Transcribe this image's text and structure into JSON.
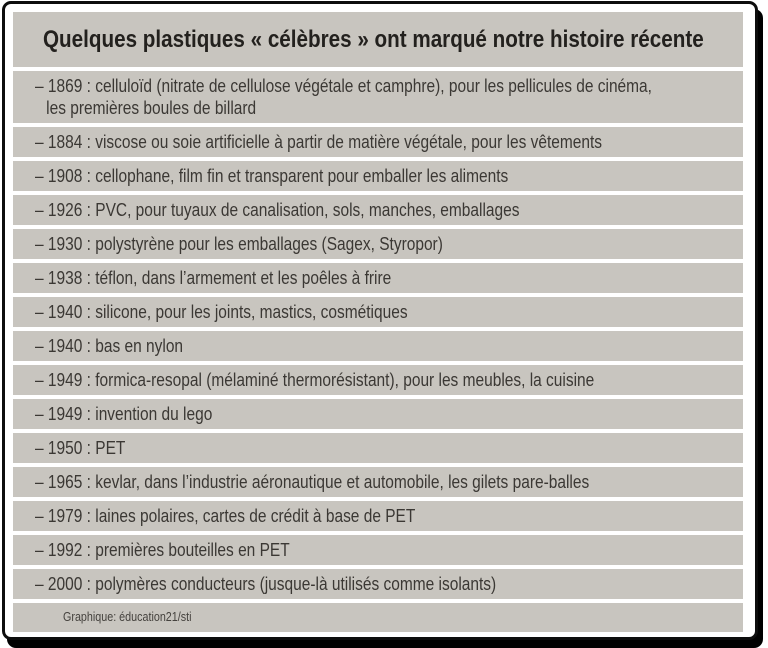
{
  "title": "Quelques plastiques « célèbres » ont marqué notre histoire récente",
  "rows": [
    "– 1869 : celluloïd (nitrate de cellulose végétale et camphre), pour les pellicules de cinéma,\nles premières boules de billard",
    "– 1884 : viscose ou soie artificielle à partir de matière végétale, pour les vêtements",
    "– 1908 : cellophane, film fin et transparent pour emballer les aliments",
    "– 1926 : PVC, pour tuyaux de canalisation, sols, manches, emballages",
    "– 1930 : polystyrène pour les emballages (Sagex, Styropor)",
    "– 1938 : téflon, dans l’armement et les poêles à frire",
    "– 1940 : silicone, pour les joints, mastics, cosmétiques",
    "– 1940 : bas en nylon",
    "– 1949 : formica-resopal (mélaminé thermorésistant), pour les meubles, la cuisine",
    "– 1949 : invention du lego",
    "– 1950 : PET",
    "– 1965 : kevlar, dans l’industrie aéronautique et automobile, les gilets pare-balles",
    "– 1979 : laines polaires, cartes de crédit à base de PET",
    "– 1992 : premières bouteilles en PET",
    "– 2000 : polymères conducteurs (jusque-là utilisés comme isolants)"
  ],
  "footer": "Graphique: éducation21/sti",
  "colors": {
    "row_background": "#c8c5bf",
    "frame_border": "#0d0d0d",
    "row_text": "#3b3834",
    "title_text": "#23211e",
    "background": "#ffffff"
  }
}
